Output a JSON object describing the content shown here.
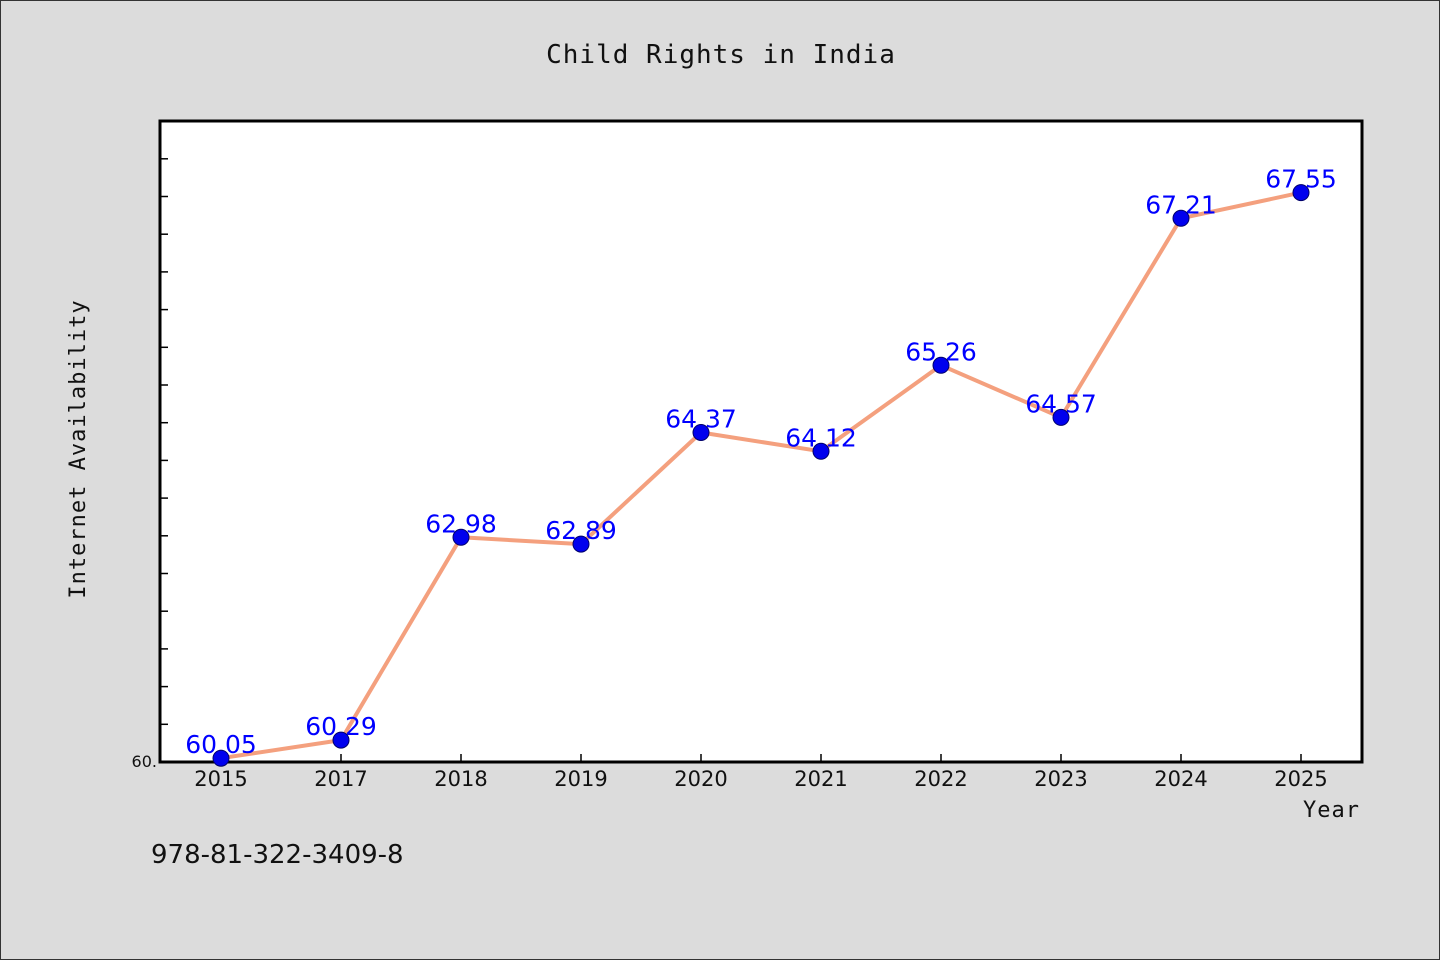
{
  "chart_data": {
    "type": "line",
    "title": "Child Rights in India",
    "xlabel": "Year",
    "ylabel": "Internet Availability",
    "categories": [
      "2015",
      "2017",
      "2018",
      "2019",
      "2020",
      "2021",
      "2022",
      "2023",
      "2024",
      "2025"
    ],
    "series": [
      {
        "values": [
          60.05,
          60.29,
          62.98,
          62.89,
          64.37,
          64.12,
          65.26,
          64.57,
          67.21,
          67.55
        ],
        "data_labels": [
          "60.05",
          "60.29",
          "62.98",
          "62.89",
          "64.37",
          "64.12",
          "65.26",
          "64.57",
          "67.21",
          "67.55"
        ],
        "line_color": "#f4a07e",
        "marker_color": "#0000ee"
      }
    ],
    "ylim": [
      60.0,
      68.5
    ],
    "y_tick_label": "60.",
    "grid": false,
    "legend": "none"
  },
  "footnote": "978-81-322-3409-8"
}
